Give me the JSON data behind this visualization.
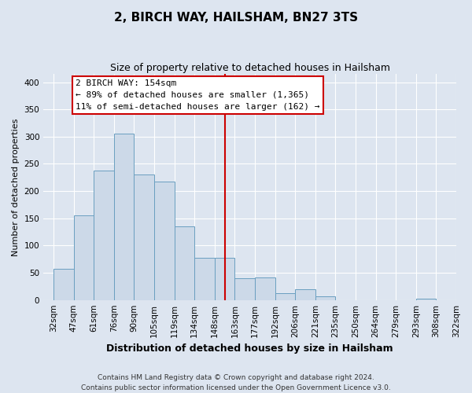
{
  "title": "2, BIRCH WAY, HAILSHAM, BN27 3TS",
  "subtitle": "Size of property relative to detached houses in Hailsham",
  "xlabel": "Distribution of detached houses by size in Hailsham",
  "ylabel": "Number of detached properties",
  "bar_labels": [
    "32sqm",
    "47sqm",
    "61sqm",
    "76sqm",
    "90sqm",
    "105sqm",
    "119sqm",
    "134sqm",
    "148sqm",
    "163sqm",
    "177sqm",
    "192sqm",
    "206sqm",
    "221sqm",
    "235sqm",
    "250sqm",
    "264sqm",
    "279sqm",
    "293sqm",
    "308sqm",
    "322sqm"
  ],
  "bar_values": [
    57,
    155,
    238,
    305,
    230,
    218,
    135,
    78,
    78,
    40,
    42,
    12,
    20,
    7,
    0,
    0,
    0,
    0,
    3,
    0
  ],
  "bar_color": "#ccd9e8",
  "bar_edge_color": "#6a9fc0",
  "vline_x_label": "148sqm",
  "vline_color": "#cc0000",
  "ylim": [
    0,
    415
  ],
  "yticks": [
    0,
    50,
    100,
    150,
    200,
    250,
    300,
    350,
    400
  ],
  "annotation_title": "2 BIRCH WAY: 154sqm",
  "annotation_line1": "← 89% of detached houses are smaller (1,365)",
  "annotation_line2": "11% of semi-detached houses are larger (162) →",
  "annotation_box_facecolor": "#ffffff",
  "annotation_box_edgecolor": "#cc0000",
  "footer_line1": "Contains HM Land Registry data © Crown copyright and database right 2024.",
  "footer_line2": "Contains public sector information licensed under the Open Government Licence v3.0.",
  "bg_color": "#dde5f0",
  "plot_bg_color": "#dde5f0",
  "grid_color": "#ffffff",
  "title_fontsize": 11,
  "subtitle_fontsize": 9,
  "xlabel_fontsize": 9,
  "ylabel_fontsize": 8,
  "tick_fontsize": 7.5,
  "footer_fontsize": 6.5
}
